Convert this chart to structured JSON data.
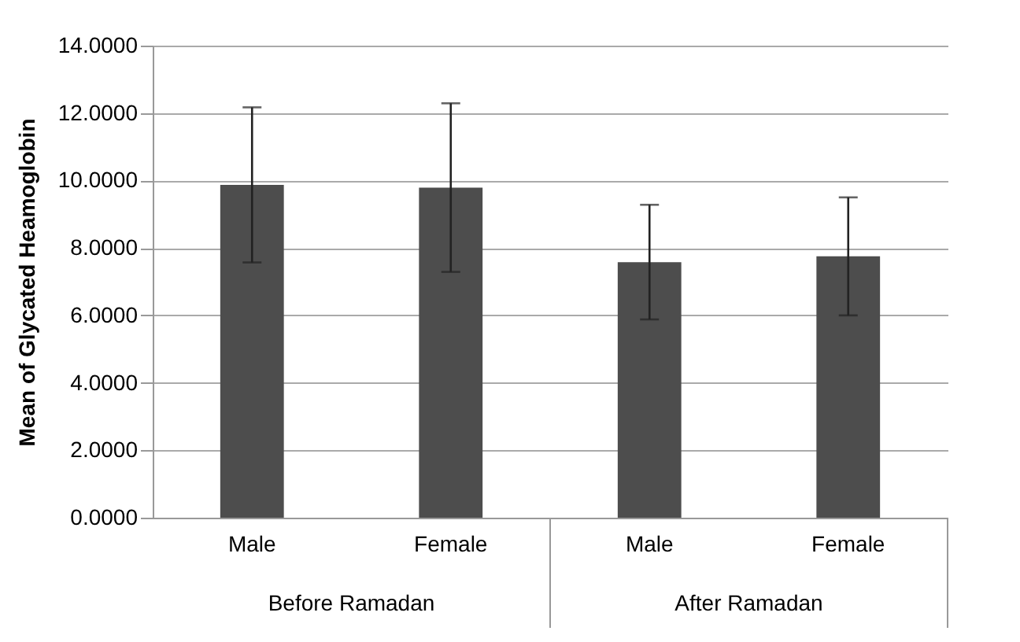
{
  "chart_data": {
    "type": "bar",
    "ylabel": "Mean of Glycated Heamoglobin",
    "categories": [
      "Male",
      "Female",
      "Male",
      "Female"
    ],
    "annotations": [
      "Before Ramadan",
      "After Ramadan"
    ],
    "values": [
      9.87,
      9.79,
      7.58,
      7.75
    ],
    "errors": [
      2.3,
      2.5,
      1.7,
      1.75
    ],
    "color": "#4d4d4d",
    "ylim": [
      0,
      14
    ],
    "yticks": [
      {
        "value": 0,
        "label": "0.0000"
      },
      {
        "value": 2,
        "label": "2.0000"
      },
      {
        "value": 4,
        "label": "4.0000"
      },
      {
        "value": 6,
        "label": "6.0000"
      },
      {
        "value": 8,
        "label": "8.0000"
      },
      {
        "value": 10,
        "label": "10.0000"
      },
      {
        "value": 12,
        "label": "12.0000"
      },
      {
        "value": 14,
        "label": "14.0000"
      }
    ],
    "grid": "y"
  }
}
